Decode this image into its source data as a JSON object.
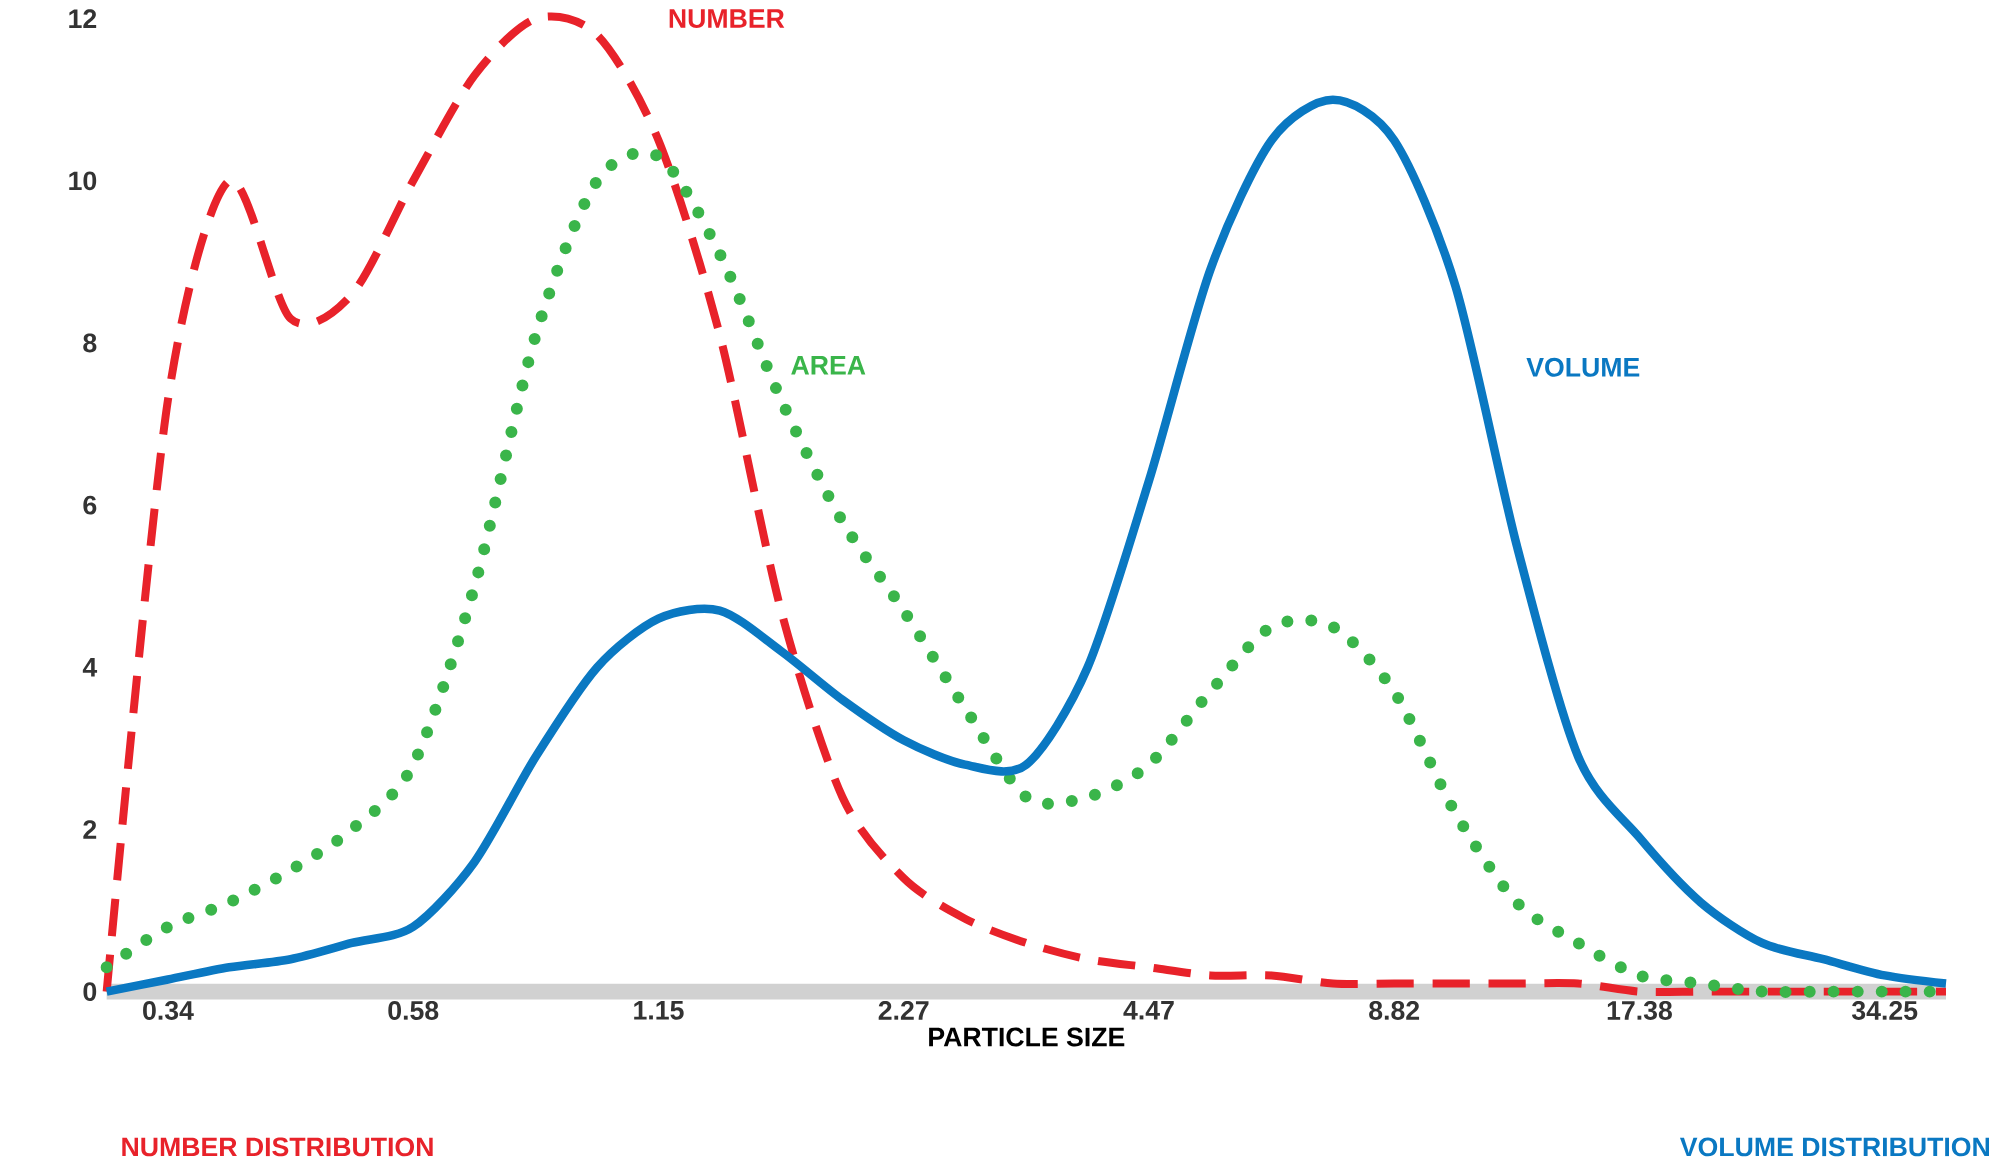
{
  "chart_data": {
    "type": "line",
    "xlabel": "PARTICLE SIZE",
    "categories": [
      null,
      "0.34",
      null,
      null,
      null,
      "0.58",
      null,
      null,
      null,
      "1.15",
      null,
      null,
      null,
      "2.27",
      null,
      null,
      null,
      "4.47",
      null,
      null,
      null,
      "8.82",
      null,
      null,
      null,
      "17.38",
      null,
      null,
      null,
      "34.25",
      null
    ],
    "series": [
      {
        "name": "NUMBER",
        "color": "#e8222a",
        "line_style": "dashed",
        "values": [
          0,
          7.3,
          10.0,
          8.3,
          8.6,
          10.0,
          11.3,
          12.0,
          11.8,
          10.5,
          8.1,
          4.7,
          2.4,
          1.4,
          0.9,
          0.6,
          0.4,
          0.3,
          0.2,
          0.2,
          0.1,
          0.1,
          0.1,
          0.1,
          0.1,
          0,
          0,
          0,
          0,
          0,
          0
        ]
      },
      {
        "name": "AREA",
        "color": "#3ab54a",
        "line_style": "dotted",
        "values": [
          0.3,
          0.8,
          1.1,
          1.5,
          2.0,
          2.8,
          5.0,
          8.1,
          10.0,
          10.3,
          9.1,
          7.3,
          5.8,
          4.7,
          3.5,
          2.4,
          2.4,
          2.8,
          3.7,
          4.5,
          4.5,
          3.7,
          2.2,
          1.1,
          0.6,
          0.2,
          0.1,
          0,
          0,
          0,
          0
        ]
      },
      {
        "name": "VOLUME",
        "color": "#0a78c2",
        "line_style": "solid",
        "values": [
          0,
          0.15,
          0.3,
          0.4,
          0.6,
          0.8,
          1.6,
          2.9,
          4.0,
          4.6,
          4.7,
          4.2,
          3.6,
          3.1,
          2.8,
          2.8,
          4.0,
          6.3,
          8.9,
          10.5,
          11.0,
          10.5,
          8.7,
          5.5,
          2.9,
          1.9,
          1.1,
          0.6,
          0.4,
          0.2,
          0.1
        ]
      }
    ],
    "ylim": [
      0,
      12
    ],
    "yticks": [
      0,
      2,
      4,
      6,
      8,
      10,
      12
    ],
    "grid": false,
    "legend": false,
    "marker": "none",
    "annotations": [
      "NUMBER DISTRIBUTION",
      "VOLUME DISTRIBUTION"
    ]
  }
}
